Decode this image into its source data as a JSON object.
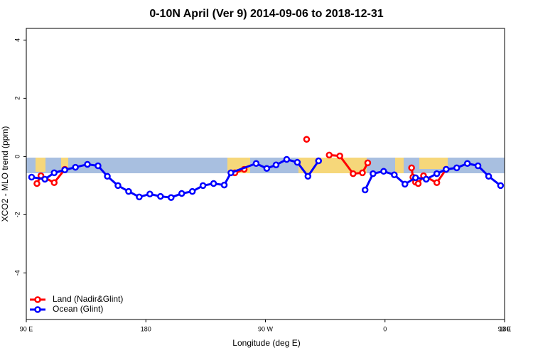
{
  "chart_data": {
    "type": "line",
    "title": "0-10N April (Ver 9)   2014-09-06 to 2018-12-31",
    "x_label": "Longitude (deg E)",
    "y_label": "XCO2 - MLO trend (ppm)",
    "xlim": [
      90,
      450
    ],
    "ylim": [
      -5.6,
      4.4
    ],
    "xticks": [
      {
        "value": 90,
        "label": "90 E"
      },
      180,
      {
        "value": 270,
        "label": "90 W"
      },
      {
        "value": 360,
        "label": "0"
      },
      {
        "value": 450,
        "label": "90 E"
      },
      {
        "value": 540,
        "label": "180"
      }
    ],
    "yticks": [
      -4,
      -2,
      0,
      2,
      4
    ],
    "legend": "bottom-left",
    "series": [
      {
        "name": "Land (Nadir&Glint)",
        "color": "#ff0000",
        "x": [
          98,
          101,
          111,
          119,
          null,
          247,
          254,
          null,
          301,
          null,
          318,
          326,
          336,
          343,
          347,
          null,
          380,
          381,
          383,
          385,
          389,
          399,
          406
        ],
        "values": [
          -0.93,
          -0.66,
          -0.9,
          -0.44,
          null,
          -0.56,
          -0.44,
          null,
          0.59,
          null,
          0.05,
          0.02,
          -0.59,
          -0.56,
          -0.22,
          null,
          -0.39,
          -0.71,
          -0.88,
          -0.93,
          -0.66,
          -0.9,
          -0.44
        ]
      },
      {
        "name": "Ocean (Glint)",
        "color": "#0000ff",
        "x": [
          94,
          104,
          111,
          119,
          127,
          136,
          144,
          151,
          159,
          167,
          175,
          183,
          191,
          199,
          207,
          215,
          223,
          231,
          239,
          244,
          263,
          271,
          278,
          286,
          294,
          302,
          310,
          null,
          345,
          351,
          359,
          367,
          375,
          383,
          391,
          399,
          406,
          414,
          422,
          430,
          438,
          447
        ],
        "values": [
          -0.71,
          -0.78,
          -0.56,
          -0.46,
          -0.37,
          -0.27,
          -0.32,
          -0.68,
          -1.0,
          -1.2,
          -1.39,
          -1.29,
          -1.37,
          -1.41,
          -1.27,
          -1.2,
          -1.0,
          -0.93,
          -0.98,
          -0.56,
          -0.24,
          -0.41,
          -0.29,
          -0.1,
          -0.2,
          -0.68,
          -0.15,
          null,
          -1.15,
          -0.59,
          -0.51,
          -0.63,
          -0.95,
          -0.73,
          -0.78,
          -0.59,
          -0.44,
          -0.39,
          -0.24,
          -0.32,
          -0.68,
          -1.0
        ]
      }
    ]
  }
}
